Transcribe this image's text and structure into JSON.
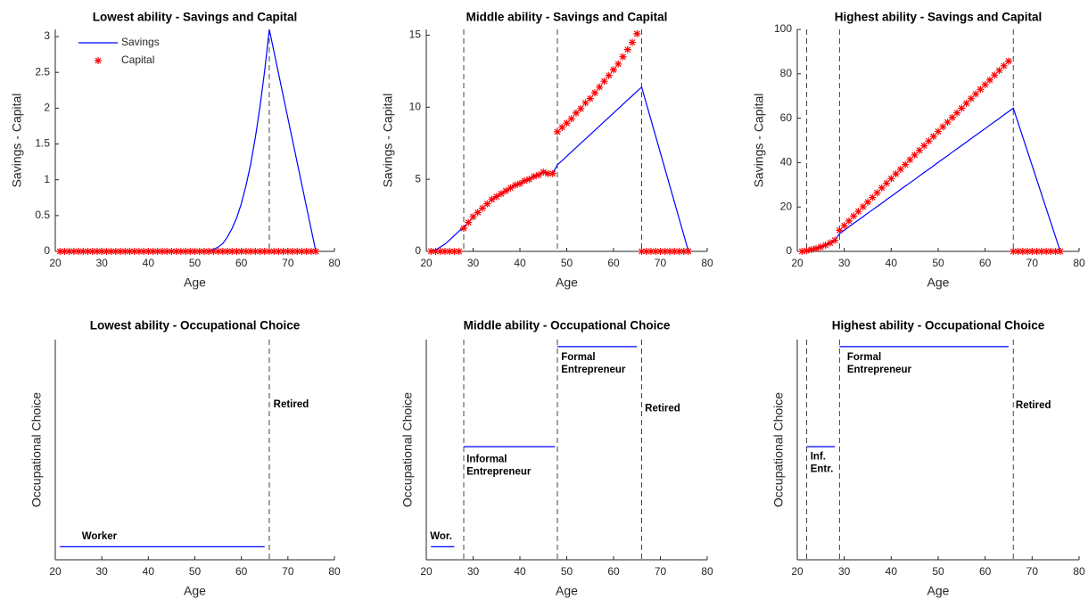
{
  "chart_data": [
    {
      "type": "line",
      "title": "Lowest ability - Savings and Capital",
      "xlabel": "Age",
      "ylabel": "Savings - Capital",
      "x": [
        21,
        22,
        23,
        24,
        25,
        26,
        27,
        28,
        29,
        30,
        31,
        32,
        33,
        34,
        35,
        36,
        37,
        38,
        39,
        40,
        41,
        42,
        43,
        44,
        45,
        46,
        47,
        48,
        49,
        50,
        51,
        52,
        53,
        54,
        55,
        56,
        57,
        58,
        59,
        60,
        61,
        62,
        63,
        64,
        65,
        66,
        67,
        68,
        69,
        70,
        71,
        72,
        73,
        74,
        75,
        76
      ],
      "series": [
        {
          "name": "Savings",
          "color": "#0000ff",
          "marker": "line",
          "values": [
            0,
            0,
            0,
            0,
            0,
            0,
            0,
            0,
            0,
            0,
            0,
            0,
            0,
            0,
            0,
            0,
            0,
            0,
            0,
            0,
            0,
            0,
            0,
            0,
            0,
            0,
            0,
            0,
            0,
            0,
            0,
            0.001,
            0.007,
            0.025,
            0.06,
            0.11,
            0.2,
            0.32,
            0.47,
            0.67,
            0.92,
            1.22,
            1.59,
            2.02,
            2.52,
            3.1,
            2.79,
            2.48,
            2.17,
            1.86,
            1.55,
            1.24,
            0.93,
            0.62,
            0.31,
            0
          ]
        },
        {
          "name": "Capital",
          "color": "#ff0000",
          "marker": "star",
          "values": [
            0,
            0,
            0,
            0,
            0,
            0,
            0,
            0,
            0,
            0,
            0,
            0,
            0,
            0,
            0,
            0,
            0,
            0,
            0,
            0,
            0,
            0,
            0,
            0,
            0,
            0,
            0,
            0,
            0,
            0,
            0,
            0,
            0,
            0,
            0,
            0,
            0,
            0,
            0,
            0,
            0,
            0,
            0,
            0,
            0,
            0,
            0,
            0,
            0,
            0,
            0,
            0,
            0,
            0,
            0,
            0
          ]
        }
      ],
      "xlim": [
        20,
        80
      ],
      "xticks": [
        20,
        30,
        40,
        50,
        60,
        70,
        80
      ],
      "ylim": [
        0,
        3.1
      ],
      "yticks": [
        0,
        0.5,
        1,
        1.5,
        2,
        2.5,
        3
      ],
      "vlines": [
        66
      ],
      "legend": "upper left"
    },
    {
      "type": "line",
      "title": "Middle ability - Savings and Capital",
      "xlabel": "Age",
      "ylabel": "Savings - Capital",
      "x": [
        21,
        22,
        23,
        24,
        25,
        26,
        27,
        28,
        29,
        30,
        31,
        32,
        33,
        34,
        35,
        36,
        37,
        38,
        39,
        40,
        41,
        42,
        43,
        44,
        45,
        46,
        47,
        48,
        49,
        50,
        51,
        52,
        53,
        54,
        55,
        56,
        57,
        58,
        59,
        60,
        61,
        62,
        63,
        64,
        65,
        66,
        67,
        68,
        69,
        70,
        71,
        72,
        73,
        74,
        75,
        76
      ],
      "series": [
        {
          "color": "#0000ff",
          "marker": "line",
          "values": [
            0,
            0.1,
            0.3,
            0.5,
            0.8,
            1.1,
            1.4,
            1.7,
            2.0,
            2.4,
            2.7,
            3.0,
            3.3,
            3.6,
            3.8,
            4.0,
            4.2,
            4.4,
            4.6,
            4.7,
            4.9,
            5.0,
            5.2,
            5.3,
            5.5,
            5.4,
            5.4,
            6.0,
            6.3,
            6.6,
            6.9,
            7.2,
            7.5,
            7.8,
            8.1,
            8.4,
            8.7,
            9.0,
            9.3,
            9.6,
            9.9,
            10.2,
            10.5,
            10.8,
            11.1,
            11.4,
            10.26,
            9.12,
            7.98,
            6.84,
            5.7,
            4.56,
            3.42,
            2.28,
            1.14,
            0
          ]
        },
        {
          "color": "#ff0000",
          "marker": "star",
          "values": [
            0,
            0,
            0,
            0,
            0,
            0,
            0,
            1.6,
            2.0,
            2.4,
            2.7,
            3.0,
            3.3,
            3.6,
            3.8,
            4.0,
            4.2,
            4.4,
            4.6,
            4.7,
            4.9,
            5.0,
            5.2,
            5.3,
            5.5,
            5.4,
            5.4,
            8.3,
            8.6,
            8.9,
            9.2,
            9.6,
            9.9,
            10.3,
            10.6,
            11.0,
            11.4,
            11.8,
            12.2,
            12.6,
            13.0,
            13.5,
            14.0,
            14.5,
            15.1,
            0,
            0,
            0,
            0,
            0,
            0,
            0,
            0,
            0,
            0,
            0
          ]
        }
      ],
      "xlim": [
        20,
        80
      ],
      "xticks": [
        20,
        30,
        40,
        50,
        60,
        70,
        80
      ],
      "ylim": [
        0,
        15.4
      ],
      "yticks": [
        0,
        5,
        10,
        15
      ],
      "vlines": [
        28,
        48,
        66
      ]
    },
    {
      "type": "line",
      "title": "Highest ability - Savings and Capital",
      "xlabel": "Age",
      "ylabel": "Savings - Capital",
      "x": [
        21,
        22,
        23,
        24,
        25,
        26,
        27,
        28,
        29,
        30,
        31,
        32,
        33,
        34,
        35,
        36,
        37,
        38,
        39,
        40,
        41,
        42,
        43,
        44,
        45,
        46,
        47,
        48,
        49,
        50,
        51,
        52,
        53,
        54,
        55,
        56,
        57,
        58,
        59,
        60,
        61,
        62,
        63,
        64,
        65,
        66,
        67,
        68,
        69,
        70,
        71,
        72,
        73,
        74,
        75,
        76
      ],
      "series": [
        {
          "color": "#0000ff",
          "marker": "line",
          "values": [
            0,
            0.3,
            0.8,
            1.3,
            2.0,
            2.8,
            3.8,
            5.0,
            8.0,
            9.5,
            11.1,
            12.6,
            14.1,
            15.6,
            17.2,
            18.7,
            20.2,
            21.7,
            23.3,
            24.8,
            26.3,
            27.9,
            29.4,
            30.9,
            32.4,
            34.0,
            35.5,
            37.0,
            38.5,
            40.1,
            41.6,
            43.1,
            44.7,
            46.2,
            47.7,
            49.2,
            50.8,
            52.3,
            53.8,
            55.3,
            56.9,
            58.4,
            59.9,
            61.5,
            63.0,
            64.5,
            58.05,
            51.6,
            45.15,
            38.7,
            32.25,
            25.8,
            19.35,
            12.9,
            6.45,
            0
          ]
        },
        {
          "color": "#ff0000",
          "marker": "star",
          "values": [
            0,
            0.3,
            0.8,
            1.3,
            2.0,
            2.8,
            3.8,
            5.0,
            9.5,
            11.6,
            13.7,
            15.9,
            18.0,
            20.1,
            22.2,
            24.3,
            26.4,
            28.6,
            30.7,
            32.8,
            34.9,
            37.0,
            39.1,
            41.3,
            43.4,
            45.5,
            47.6,
            49.7,
            51.8,
            54.0,
            56.1,
            58.2,
            60.3,
            62.4,
            64.5,
            66.7,
            68.8,
            70.9,
            73.0,
            75.1,
            77.2,
            79.4,
            81.5,
            83.6,
            85.7,
            0,
            0,
            0,
            0,
            0,
            0,
            0,
            0,
            0,
            0,
            0
          ]
        }
      ],
      "xlim": [
        20,
        80
      ],
      "xticks": [
        20,
        30,
        40,
        50,
        60,
        70,
        80
      ],
      "ylim": [
        0,
        100
      ],
      "yticks": [
        0,
        20,
        40,
        60,
        80,
        100
      ],
      "vlines": [
        22,
        29,
        66
      ]
    },
    {
      "type": "occupation",
      "title": "Lowest ability - Occupational Choice",
      "xlabel": "Age",
      "ylabel": "Occupational Choice",
      "xlim": [
        20,
        80
      ],
      "xticks": [
        20,
        30,
        40,
        50,
        60,
        70,
        80
      ],
      "ylim": [
        0.87,
        3.07
      ],
      "color": "#0000ff",
      "vlines": [
        66
      ],
      "segments": [
        {
          "x": [
            21,
            65
          ],
          "level": 1
        }
      ],
      "annotations": [
        {
          "text": [
            "Worker"
          ],
          "x": 25.7,
          "y": 1.1
        },
        {
          "text": [
            "Retired"
          ],
          "x": 66.9,
          "y": 2.42
        }
      ]
    },
    {
      "type": "occupation",
      "title": "Middle ability - Occupational Choice",
      "xlabel": "Age",
      "ylabel": "Occupational Choice",
      "xlim": [
        20,
        80
      ],
      "xticks": [
        20,
        30,
        40,
        50,
        60,
        70,
        80
      ],
      "ylim": [
        0.87,
        3.07
      ],
      "color": "#0000ff",
      "vlines": [
        28,
        48,
        66
      ],
      "segments": [
        {
          "x": [
            21,
            26
          ],
          "level": 1
        },
        {
          "x": [
            28,
            47.5
          ],
          "level": 2
        },
        {
          "x": [
            48,
            65
          ],
          "level": 3
        }
      ],
      "annotations": [
        {
          "text": [
            "Wor."
          ],
          "x": 20.8,
          "y": 1.1
        },
        {
          "text": [
            "Informal",
            "Entrepreneur"
          ],
          "x": 28.6,
          "y": 1.87
        },
        {
          "text": [
            "Formal",
            "Entrepreneur"
          ],
          "x": 48.8,
          "y": 2.89
        },
        {
          "text": [
            "Retired"
          ],
          "x": 66.7,
          "y": 2.38
        }
      ]
    },
    {
      "type": "occupation",
      "title": "Highest ability - Occupational Choice",
      "xlabel": "Age",
      "ylabel": "Occupational Choice",
      "xlim": [
        20,
        80
      ],
      "xticks": [
        20,
        30,
        40,
        50,
        60,
        70,
        80
      ],
      "ylim": [
        0.87,
        3.07
      ],
      "color": "#0000ff",
      "vlines": [
        22,
        29,
        66
      ],
      "segments": [
        {
          "x": [
            22,
            28
          ],
          "level": 2
        },
        {
          "x": [
            29,
            65
          ],
          "level": 3
        }
      ],
      "annotations": [
        {
          "text": [
            "Inf.",
            "Entr."
          ],
          "x": 22.8,
          "y": 1.9
        },
        {
          "text": [
            "Formal",
            "Entrepreneur"
          ],
          "x": 30.6,
          "y": 2.89
        },
        {
          "text": [
            "Retired"
          ],
          "x": 66.5,
          "y": 2.41
        }
      ]
    }
  ]
}
